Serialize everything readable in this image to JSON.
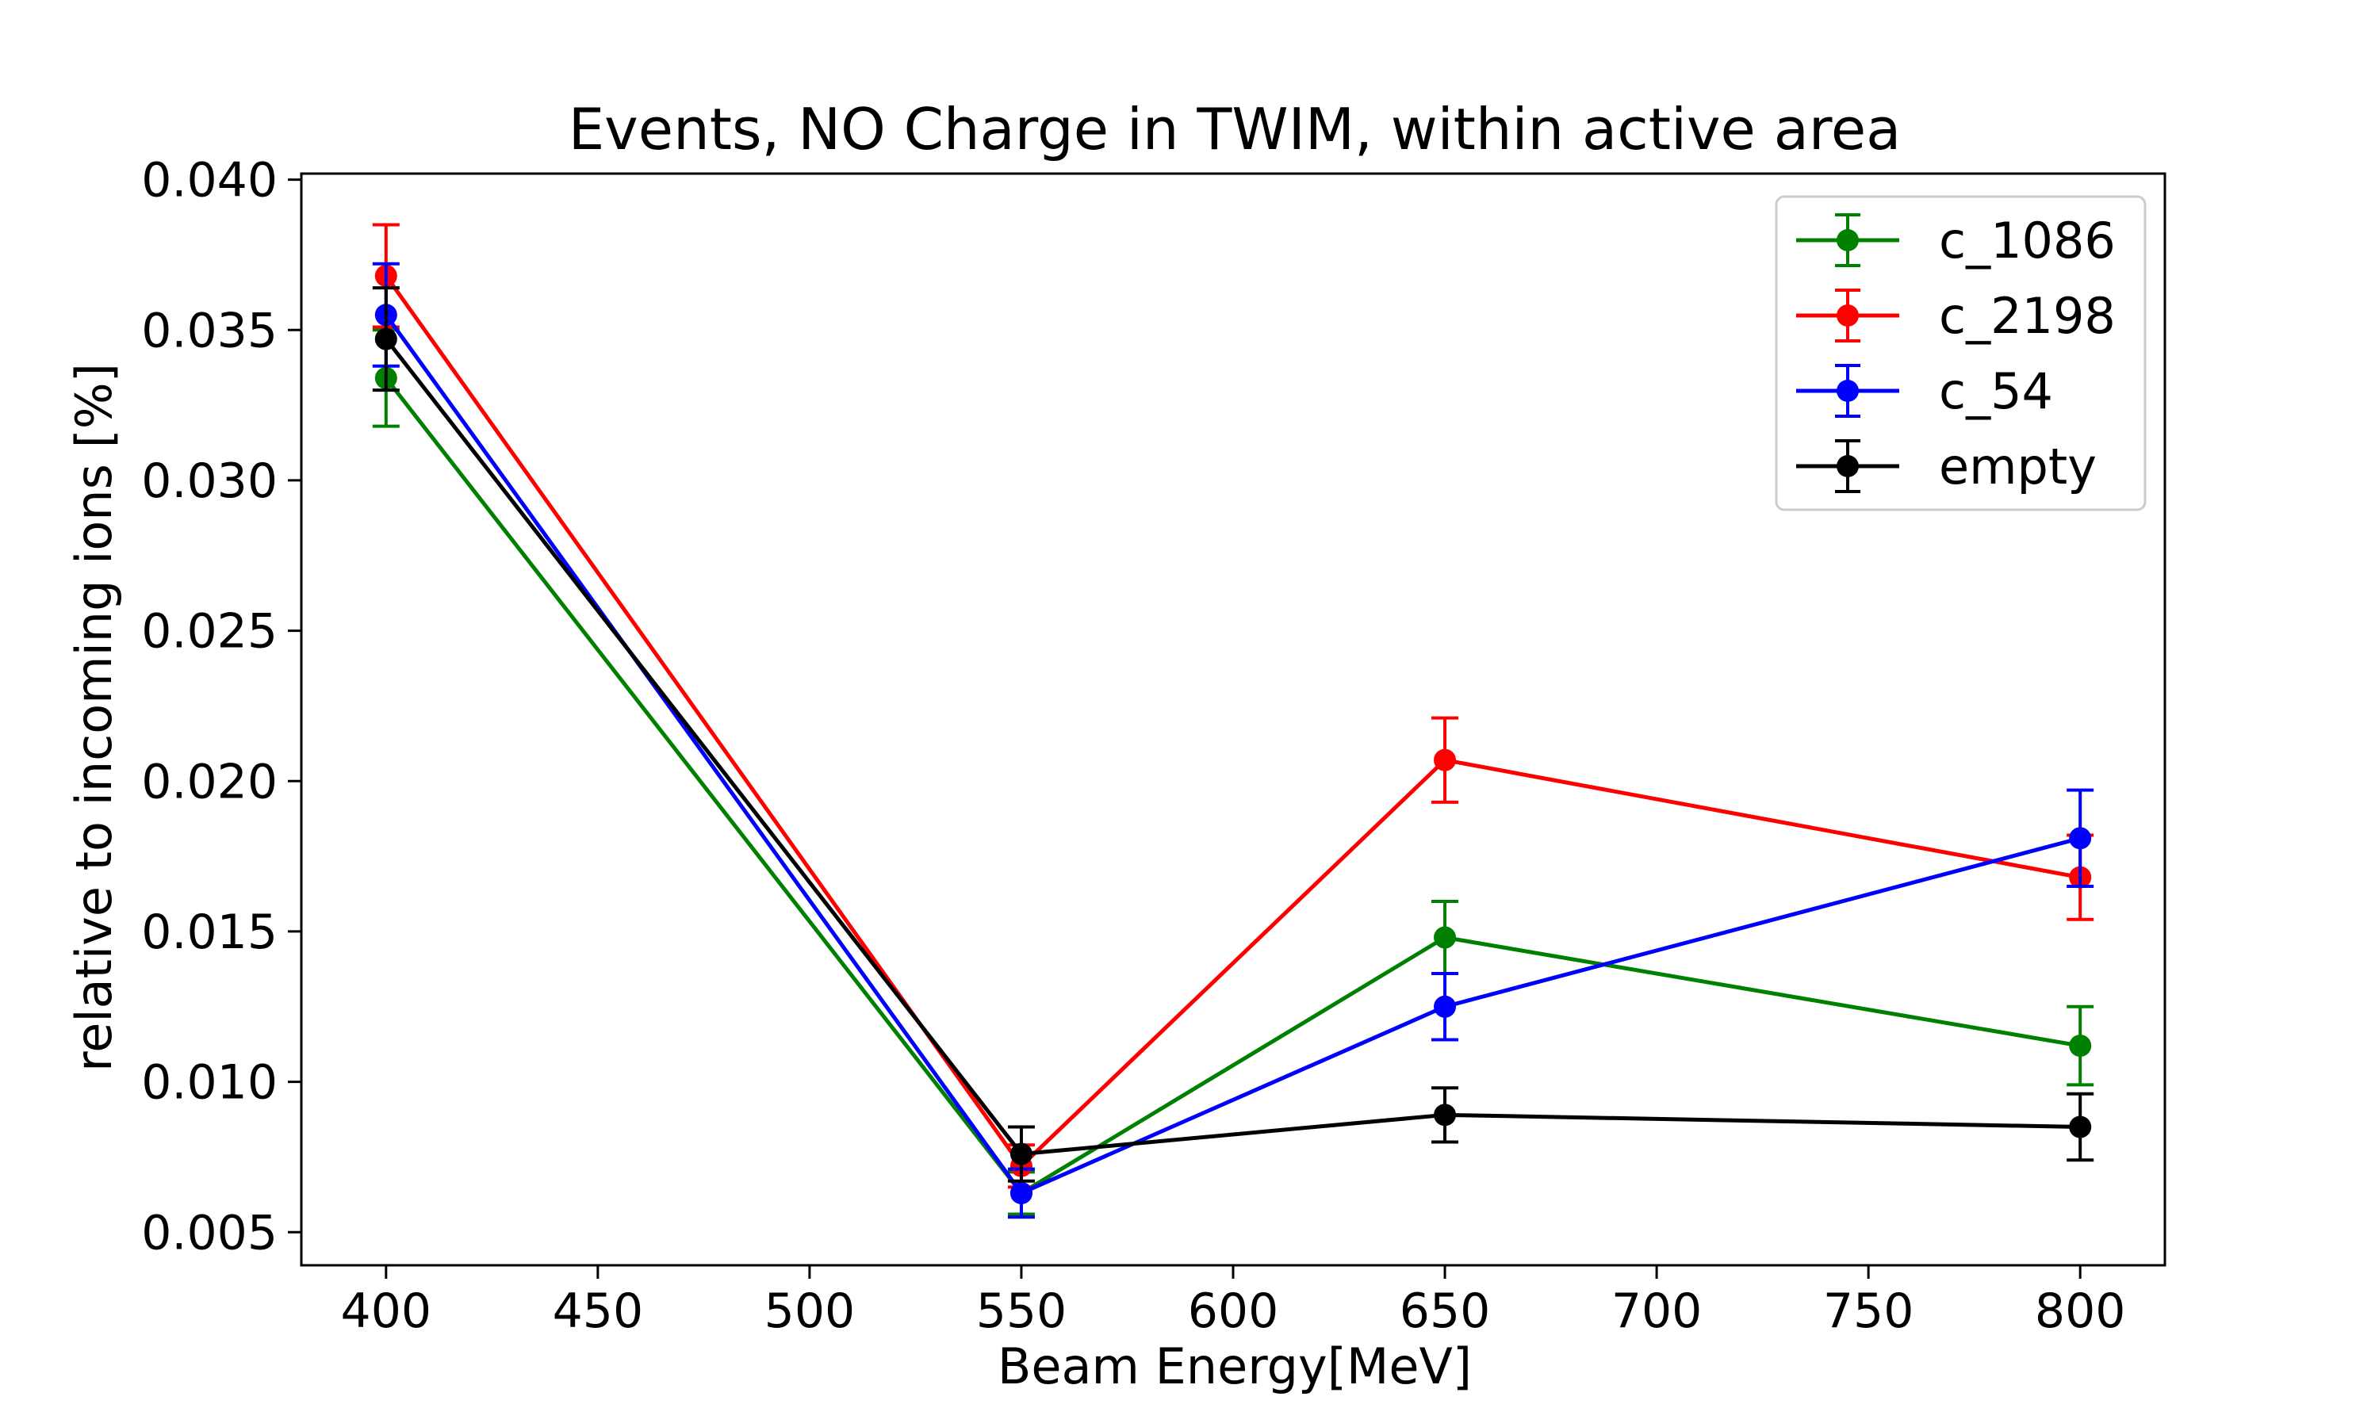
{
  "chart_data": {
    "type": "line",
    "title": "Events, NO Charge in TWIM, within active area",
    "xlabel": "Beam Energy[MeV]",
    "ylabel": "relative to incoming ions [%]",
    "x": [
      400,
      550,
      650,
      800
    ],
    "xlim": [
      380,
      820
    ],
    "ylim": [
      0.0039,
      0.0402
    ],
    "xticks": [
      "400",
      "450",
      "500",
      "550",
      "600",
      "650",
      "700",
      "750",
      "800"
    ],
    "yticks": [
      "0.005",
      "0.010",
      "0.015",
      "0.020",
      "0.025",
      "0.030",
      "0.035",
      "0.040"
    ],
    "grid": false,
    "legend_position": "top-right",
    "error_bars": true,
    "series": [
      {
        "name": "c_1086",
        "color": "#008000",
        "values": [
          0.0334,
          0.0063,
          0.0148,
          0.0112
        ],
        "errors": [
          0.0016,
          0.0007,
          0.0012,
          0.0013
        ]
      },
      {
        "name": "c_2198",
        "color": "#ff0000",
        "values": [
          0.0368,
          0.0072,
          0.0207,
          0.0168
        ],
        "errors": [
          0.0017,
          0.0007,
          0.0014,
          0.0014
        ]
      },
      {
        "name": "c_54",
        "color": "#0000ff",
        "values": [
          0.0355,
          0.0063,
          0.0125,
          0.0181
        ],
        "errors": [
          0.0017,
          0.0008,
          0.0011,
          0.0016
        ]
      },
      {
        "name": "empty",
        "color": "#000000",
        "values": [
          0.0347,
          0.0076,
          0.0089,
          0.0085
        ],
        "errors": [
          0.0017,
          0.0009,
          0.0009,
          0.0011
        ]
      }
    ]
  }
}
